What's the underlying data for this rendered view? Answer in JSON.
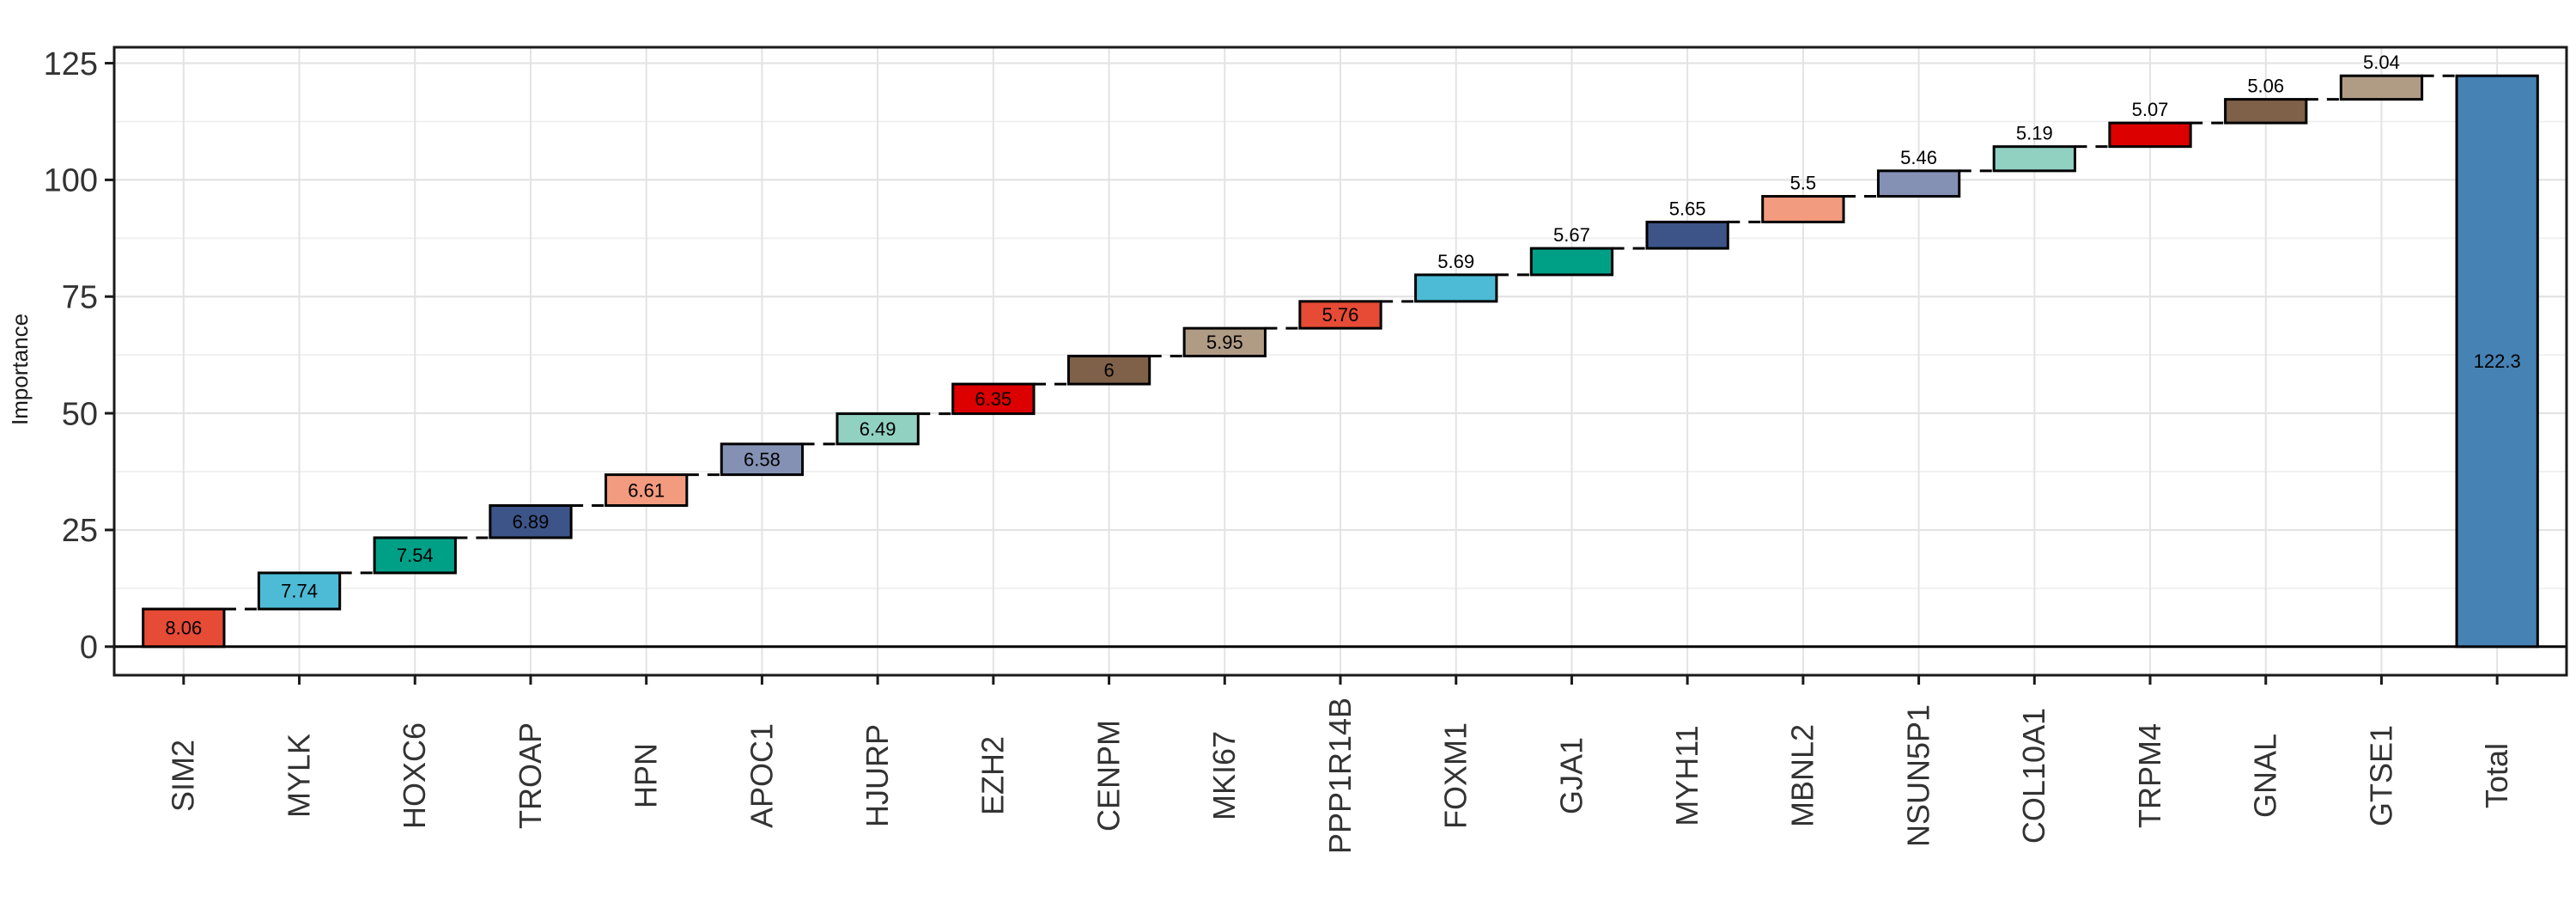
{
  "figure": {
    "background_color": "#ffffff",
    "panel_border_color": "#1a1a1a",
    "grid_major_color": "#e3e3e3",
    "grid_minor_color": "#efefef",
    "zero_line_color": "#000000",
    "connector_color": "#000000",
    "bar_border_color": "#000000",
    "axis_text_color": "#333333"
  },
  "chart_data": {
    "type": "bar",
    "subtype": "waterfall",
    "title": "",
    "xlabel": "",
    "ylabel": "Importance",
    "legend": "none",
    "grid": "on",
    "ylim": [
      -6.115,
      128.415
    ],
    "y_major_ticks": [
      0,
      25,
      50,
      75,
      100,
      125
    ],
    "y_tick_labels": [
      "0",
      "25",
      "50",
      "75",
      "100",
      "125"
    ],
    "y_minor_ticks": [
      12.5,
      37.5,
      62.5,
      87.5,
      112.5
    ],
    "categories": [
      "SIM2",
      "MYLK",
      "HOXC6",
      "TROAP",
      "HPN",
      "APOC1",
      "HJURP",
      "EZH2",
      "CENPM",
      "MKI67",
      "PPP1R14B",
      "FOXM1",
      "GJA1",
      "MYH11",
      "MBNL2",
      "NSUN5P1",
      "COL10A1",
      "TRPM4",
      "GNAL",
      "GTSE1",
      "Total"
    ],
    "values": [
      8.06,
      7.74,
      7.54,
      6.89,
      6.61,
      6.58,
      6.49,
      6.35,
      6,
      5.95,
      5.76,
      5.69,
      5.67,
      5.65,
      5.5,
      5.46,
      5.19,
      5.07,
      5.06,
      5.04,
      122.3
    ],
    "total_value": 122.3,
    "bars": [
      {
        "label": "SIM2",
        "value": 8.06,
        "start": 0,
        "end": 8.06,
        "value_label": "8.06",
        "value_label_pos": "inside",
        "color": "#E64B35"
      },
      {
        "label": "MYLK",
        "value": 7.74,
        "start": 8.06,
        "end": 15.8,
        "value_label": "7.74",
        "value_label_pos": "inside",
        "color": "#4DBBD5"
      },
      {
        "label": "HOXC6",
        "value": 7.54,
        "start": 15.8,
        "end": 23.34,
        "value_label": "7.54",
        "value_label_pos": "inside",
        "color": "#00A087"
      },
      {
        "label": "TROAP",
        "value": 6.89,
        "start": 23.34,
        "end": 30.23,
        "value_label": "6.89",
        "value_label_pos": "inside",
        "color": "#3C5488"
      },
      {
        "label": "HPN",
        "value": 6.61,
        "start": 30.23,
        "end": 36.84,
        "value_label": "6.61",
        "value_label_pos": "inside",
        "color": "#F39B7F"
      },
      {
        "label": "APOC1",
        "value": 6.58,
        "start": 36.84,
        "end": 43.42,
        "value_label": "6.58",
        "value_label_pos": "inside",
        "color": "#8491B4"
      },
      {
        "label": "HJURP",
        "value": 6.49,
        "start": 43.42,
        "end": 49.91,
        "value_label": "6.49",
        "value_label_pos": "inside",
        "color": "#91D1C2"
      },
      {
        "label": "EZH2",
        "value": 6.35,
        "start": 49.91,
        "end": 56.26,
        "value_label": "6.35",
        "value_label_pos": "inside",
        "color": "#DC0000"
      },
      {
        "label": "CENPM",
        "value": 6,
        "start": 56.26,
        "end": 62.26,
        "value_label": "6",
        "value_label_pos": "inside",
        "color": "#7E6148"
      },
      {
        "label": "MKI67",
        "value": 5.95,
        "start": 62.26,
        "end": 68.21,
        "value_label": "5.95",
        "value_label_pos": "inside",
        "color": "#B09C85"
      },
      {
        "label": "PPP1R14B",
        "value": 5.76,
        "start": 68.21,
        "end": 73.97,
        "value_label": "5.76",
        "value_label_pos": "inside",
        "color": "#E64B35"
      },
      {
        "label": "FOXM1",
        "value": 5.69,
        "start": 73.97,
        "end": 79.66,
        "value_label": "5.69",
        "value_label_pos": "above",
        "color": "#4DBBD5"
      },
      {
        "label": "GJA1",
        "value": 5.67,
        "start": 79.66,
        "end": 85.33,
        "value_label": "5.67",
        "value_label_pos": "above",
        "color": "#00A087"
      },
      {
        "label": "MYH11",
        "value": 5.65,
        "start": 85.33,
        "end": 90.98,
        "value_label": "5.65",
        "value_label_pos": "above",
        "color": "#3C5488"
      },
      {
        "label": "MBNL2",
        "value": 5.5,
        "start": 90.98,
        "end": 96.48,
        "value_label": "5.5",
        "value_label_pos": "above",
        "color": "#F39B7F"
      },
      {
        "label": "NSUN5P1",
        "value": 5.46,
        "start": 96.48,
        "end": 101.94,
        "value_label": "5.46",
        "value_label_pos": "above",
        "color": "#8491B4"
      },
      {
        "label": "COL10A1",
        "value": 5.19,
        "start": 101.94,
        "end": 107.13,
        "value_label": "5.19",
        "value_label_pos": "above",
        "color": "#91D1C2"
      },
      {
        "label": "TRPM4",
        "value": 5.07,
        "start": 107.13,
        "end": 112.2,
        "value_label": "5.07",
        "value_label_pos": "above",
        "color": "#DC0000"
      },
      {
        "label": "GNAL",
        "value": 5.06,
        "start": 112.2,
        "end": 117.26,
        "value_label": "5.06",
        "value_label_pos": "above",
        "color": "#7E6148"
      },
      {
        "label": "GTSE1",
        "value": 5.04,
        "start": 117.26,
        "end": 122.3,
        "value_label": "5.04",
        "value_label_pos": "above",
        "color": "#B09C85"
      },
      {
        "label": "Total",
        "value": 122.3,
        "start": 0,
        "end": 122.3,
        "value_label": "122.3",
        "value_label_pos": "center",
        "color": "#4682B4"
      }
    ],
    "connector_style": "dashed"
  }
}
